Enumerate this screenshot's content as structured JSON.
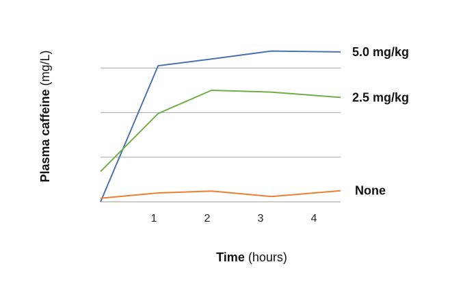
{
  "chart_data": {
    "type": "line",
    "xlabel_bold": "Time",
    "xlabel_rest": " (hours)",
    "ylabel_bold": "Plasma caffeine",
    "ylabel_rest": " (mg/L)",
    "xlim": [
      0,
      4.5
    ],
    "ylim": [
      0,
      3.45
    ],
    "grid": true,
    "grid_y_values": [
      1,
      2,
      3
    ],
    "x_ticks": [
      1,
      2,
      3,
      4
    ],
    "x_tick_labels": [
      "1",
      "2",
      "3",
      "4"
    ],
    "series": [
      {
        "name": "5.0 mg/kg",
        "color": "#4a72b0",
        "x": [
          0,
          1.08,
          2.08,
          3.2,
          4.5
        ],
        "y": [
          0,
          3.05,
          3.2,
          3.38,
          3.36
        ]
      },
      {
        "name": "2.5 mg/kg",
        "color": "#70ad47",
        "x": [
          0,
          1.08,
          2.08,
          3.2,
          4.5
        ],
        "y": [
          0.68,
          1.98,
          2.5,
          2.46,
          2.34
        ]
      },
      {
        "name": "None",
        "color": "#ed7d31",
        "x": [
          0,
          1.08,
          2.08,
          3.2,
          4.5
        ],
        "y": [
          0.08,
          0.2,
          0.24,
          0.12,
          0.25
        ]
      }
    ]
  }
}
